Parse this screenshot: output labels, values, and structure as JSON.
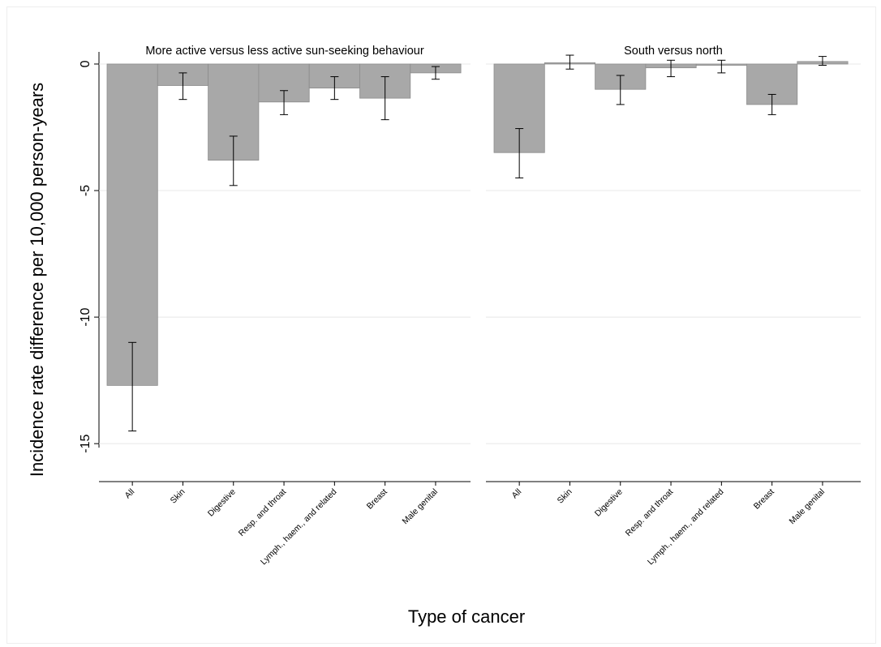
{
  "chart_data": {
    "type": "bar",
    "ylabel": "Incidence rate difference per 10,000 person-years",
    "xlabel": "Type of cancer",
    "ylim": [
      -16.5,
      0.8
    ],
    "yticks": [
      0,
      -5,
      -10,
      -15
    ],
    "ytick_labels": [
      "0",
      "-5",
      "-10",
      "-15"
    ],
    "grid": true,
    "categories": [
      "All",
      "Skin",
      "Digestive",
      "Resp. and throat",
      "Lymph., haem., and related",
      "Breast",
      "Male genital"
    ],
    "panels": [
      {
        "title": "More active versus less active sun-seeking behaviour",
        "values": [
          -12.7,
          -0.85,
          -3.8,
          -1.5,
          -0.95,
          -1.35,
          -0.35
        ],
        "ci_low": [
          -14.5,
          -1.4,
          -4.8,
          -2.0,
          -1.4,
          -2.2,
          -0.6
        ],
        "ci_high": [
          -11.0,
          -0.35,
          -2.85,
          -1.05,
          -0.5,
          -0.5,
          -0.1
        ]
      },
      {
        "title": "South versus north",
        "values": [
          -3.5,
          0.05,
          -1.0,
          -0.15,
          -0.05,
          -1.6,
          0.1
        ],
        "ci_low": [
          -4.5,
          -0.2,
          -1.6,
          -0.5,
          -0.35,
          -2.0,
          -0.05
        ],
        "ci_high": [
          -2.55,
          0.35,
          -0.45,
          0.15,
          0.15,
          -1.2,
          0.3
        ]
      }
    ],
    "colors": {
      "bar": "#a8a8a8",
      "bar_edge": "#8c8c8c",
      "error": "#000000",
      "grid": "#e8e8e8",
      "axis": "#000000"
    }
  }
}
